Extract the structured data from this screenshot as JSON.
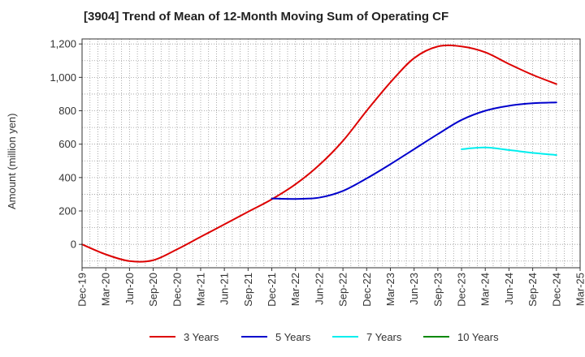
{
  "chart_data": {
    "type": "line",
    "title": "[3904]  Trend of Mean of 12-Month Moving Sum of Operating CF",
    "xlabel": "",
    "ylabel": "Amount (million yen)",
    "categories": [
      "Dec-19",
      "Mar-20",
      "Jun-20",
      "Sep-20",
      "Dec-20",
      "Mar-21",
      "Jun-21",
      "Sep-21",
      "Dec-21",
      "Mar-22",
      "Jun-22",
      "Sep-22",
      "Dec-22",
      "Mar-23",
      "Jun-23",
      "Sep-23",
      "Dec-23",
      "Mar-24",
      "Jun-24",
      "Sep-24",
      "Dec-24",
      "Mar-25"
    ],
    "ylim": [
      -140,
      1230
    ],
    "yticks": [
      0,
      200,
      400,
      600,
      800,
      1000,
      1200
    ],
    "ytick_labels": [
      "0",
      "200",
      "400",
      "600",
      "800",
      "1,000",
      "1,200"
    ],
    "grid": true,
    "legend_position": "bottom",
    "series": [
      {
        "name": "3 Years",
        "color": "#dd0000",
        "values": [
          0,
          -60,
          -100,
          -95,
          -30,
          45,
          120,
          195,
          270,
          360,
          475,
          620,
          800,
          970,
          1115,
          1185,
          1185,
          1150,
          1080,
          1015,
          960,
          null
        ]
      },
      {
        "name": "5 Years",
        "color": "#0000cc",
        "values": [
          null,
          null,
          null,
          null,
          null,
          null,
          null,
          null,
          275,
          272,
          280,
          320,
          395,
          480,
          570,
          660,
          745,
          800,
          830,
          845,
          850,
          null
        ]
      },
      {
        "name": "7 Years",
        "color": "#00eeee",
        "values": [
          null,
          null,
          null,
          null,
          null,
          null,
          null,
          null,
          null,
          null,
          null,
          null,
          null,
          null,
          null,
          null,
          570,
          580,
          565,
          548,
          535,
          null
        ]
      },
      {
        "name": "10 Years",
        "color": "#008800",
        "values": [
          null,
          null,
          null,
          null,
          null,
          null,
          null,
          null,
          null,
          null,
          null,
          null,
          null,
          null,
          null,
          null,
          null,
          null,
          null,
          null,
          null,
          null
        ]
      }
    ]
  }
}
